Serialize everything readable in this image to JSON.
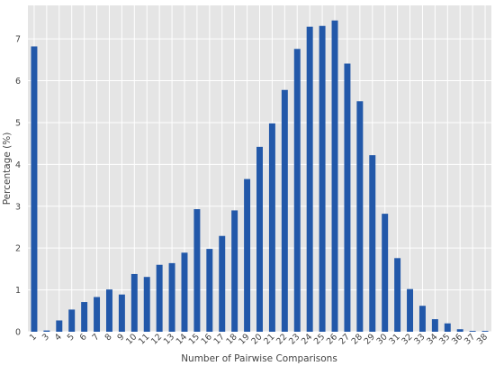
{
  "chart_data": {
    "type": "bar",
    "title": "",
    "xlabel": "Number of Pairwise Comparisons",
    "ylabel": "Percentage (%)",
    "ylim": [
      0,
      7.8
    ],
    "yticks": [
      0,
      1,
      2,
      3,
      4,
      5,
      6,
      7
    ],
    "grid": true,
    "categories": [
      "1",
      "3",
      "4",
      "5",
      "6",
      "7",
      "8",
      "9",
      "10",
      "11",
      "12",
      "13",
      "14",
      "15",
      "16",
      "17",
      "18",
      "19",
      "20",
      "21",
      "22",
      "23",
      "24",
      "25",
      "26",
      "27",
      "28",
      "29",
      "30",
      "31",
      "32",
      "33",
      "34",
      "35",
      "36",
      "37",
      "38"
    ],
    "values": [
      6.82,
      0.03,
      0.27,
      0.53,
      0.71,
      0.83,
      1.01,
      0.89,
      1.38,
      1.31,
      1.6,
      1.64,
      1.89,
      2.93,
      1.98,
      2.29,
      2.9,
      3.65,
      4.42,
      4.98,
      5.78,
      6.76,
      7.29,
      7.31,
      7.44,
      6.41,
      5.51,
      4.22,
      2.82,
      1.76,
      1.02,
      0.62,
      0.3,
      0.2,
      0.06,
      0.02,
      0.02
    ],
    "colors": {
      "bar": "#2258a9",
      "panel": "#e5e5e5",
      "grid": "#ffffff",
      "text": "#444444"
    }
  }
}
